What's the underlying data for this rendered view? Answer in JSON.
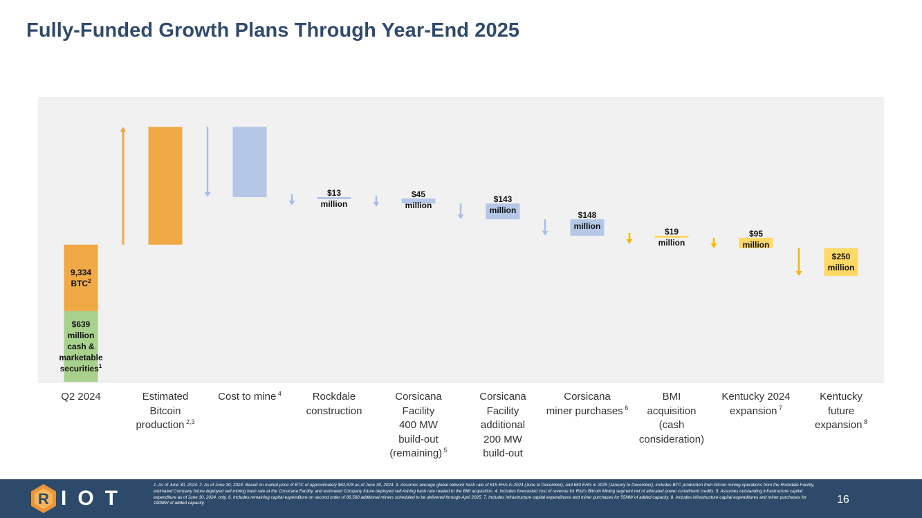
{
  "title": "Fully-Funded Growth Plans Through Year-End 2025",
  "chart_data": {
    "type": "waterfall",
    "title": "Fully-Funded Growth Plans Through Year-End 2025",
    "colors": {
      "cash": "#a9d18e",
      "btc": "#f0a945",
      "cost": "#b4c7e7",
      "acquisition": "#ffd966",
      "arrow_up": "#f0a945",
      "arrow_down_blue": "#a7bfe4",
      "arrow_down_gold": "#f5b800"
    },
    "categories": [
      {
        "id": "q2",
        "lines": [
          "Q2 2024"
        ],
        "sup": ""
      },
      {
        "id": "btc-prod",
        "lines": [
          "Estimated",
          "Bitcoin",
          "production"
        ],
        "sup": "2,3"
      },
      {
        "id": "cost-mine",
        "lines": [
          "Cost to mine"
        ],
        "sup": "4"
      },
      {
        "id": "rockdale",
        "lines": [
          "Rockdale",
          "construction"
        ],
        "sup": ""
      },
      {
        "id": "corsicana-400",
        "lines": [
          "Corsicana",
          "Facility",
          "400 MW",
          "build-out",
          "(remaining)"
        ],
        "sup": "5"
      },
      {
        "id": "corsicana-200",
        "lines": [
          "Corsicana",
          "Facility",
          "additional",
          "200 MW",
          "build-out"
        ],
        "sup": ""
      },
      {
        "id": "corsicana-miner",
        "lines": [
          "Corsicana",
          "miner purchases"
        ],
        "sup": "6"
      },
      {
        "id": "bmi",
        "lines": [
          "BMI",
          "acquisition",
          "(cash",
          "consideration)"
        ],
        "sup": ""
      },
      {
        "id": "kentucky-2024",
        "lines": [
          "Kentucky 2024",
          "expansion"
        ],
        "sup": "7"
      },
      {
        "id": "kentucky-future",
        "lines": [
          "Kentucky",
          "future",
          "expansion"
        ],
        "sup": "8"
      }
    ],
    "bars": [
      {
        "category": "Q2 2024",
        "segment": "cash",
        "base": 0,
        "value": 639,
        "direction": "up",
        "color_key": "cash",
        "label_lines": [
          "$639",
          "million",
          "cash &",
          "marketable",
          "securities"
        ],
        "label_sup": "1"
      },
      {
        "category": "Q2 2024",
        "segment": "btc",
        "base": 639,
        "value": 600,
        "direction": "up",
        "color_key": "btc",
        "label_lines": [
          "9,334",
          "BTC"
        ],
        "label_sup": "2"
      },
      {
        "category": "Estimated Bitcoin production",
        "base": 1239,
        "value": 1064,
        "direction": "up",
        "color_key": "btc",
        "label_lines": [],
        "label_sup": ""
      },
      {
        "category": "Cost to mine",
        "base": 2303,
        "value": -634,
        "direction": "down",
        "color_key": "cost",
        "label_lines": [],
        "label_sup": ""
      },
      {
        "category": "Rockdale construction",
        "base": 1669,
        "value": -13,
        "direction": "down",
        "color_key": "cost",
        "label_lines": [
          "$13",
          "million"
        ],
        "label_sup": ""
      },
      {
        "category": "Corsicana Facility 400 MW build-out (remaining)",
        "base": 1656,
        "value": -45,
        "direction": "down",
        "color_key": "cost",
        "label_lines": [
          "$45",
          "million"
        ],
        "label_sup": ""
      },
      {
        "category": "Corsicana Facility additional 200 MW build-out",
        "base": 1611,
        "value": -143,
        "direction": "down",
        "color_key": "cost",
        "label_lines": [
          "$143",
          "million"
        ],
        "label_sup": ""
      },
      {
        "category": "Corsicana miner purchases",
        "base": 1468,
        "value": -148,
        "direction": "down",
        "color_key": "cost",
        "label_lines": [
          "$148",
          "million"
        ],
        "label_sup": ""
      },
      {
        "category": "BMI acquisition (cash consideration)",
        "base": 1320,
        "value": -19,
        "direction": "down",
        "color_key": "acquisition",
        "label_lines": [
          "$19",
          "million"
        ],
        "label_sup": ""
      },
      {
        "category": "Kentucky 2024 expansion",
        "base": 1301,
        "value": -95,
        "direction": "down",
        "color_key": "acquisition",
        "label_lines": [
          "$95",
          "million"
        ],
        "label_sup": ""
      },
      {
        "category": "Kentucky future expansion",
        "base": 1206,
        "value": -250,
        "direction": "down",
        "color_key": "acquisition",
        "label_lines": [
          "$250",
          "million"
        ],
        "label_sup": ""
      }
    ],
    "ylim": [
      0,
      2575
    ],
    "grid": false,
    "legend": "none"
  },
  "footer": {
    "logo_text": "IOT",
    "logo_letter": "R",
    "page_number": "16",
    "footnotes": "1. As of June 30, 2024. 2. As of June 30, 2024. Based on market price of BTC of approximately $62,678 as of June 30, 2024. 3. Assumes average global network hash rate of 615 EH/s in 2024 (June to December), and 663 EH/s in 2025 (January to December), includes BTC production from bitcoin mining operations from the Rockdale Facility, estimated Company future deployed self-mining hash rate at the Corsicana Facility, and estimated Company future deployed self-mining hash rate related to the BMI acquisition. 4. Includes forecasted cost of revenue for Riot's Bitcoin Mining segment net of allocated power curtailment credits. 5. Assumes outstanding infrastructure capital expenditure as of June 30, 2024, only. 6. Includes remaining capital expenditure on second order of 66,560 additional miners scheduled to be delivered through April 2025. 7. Includes infrastructure capital expenditures and miner purchases for 55MW of added capacity. 8. Includes infrastructure capital expenditures and miner purchases for 190MW of added capacity."
  }
}
